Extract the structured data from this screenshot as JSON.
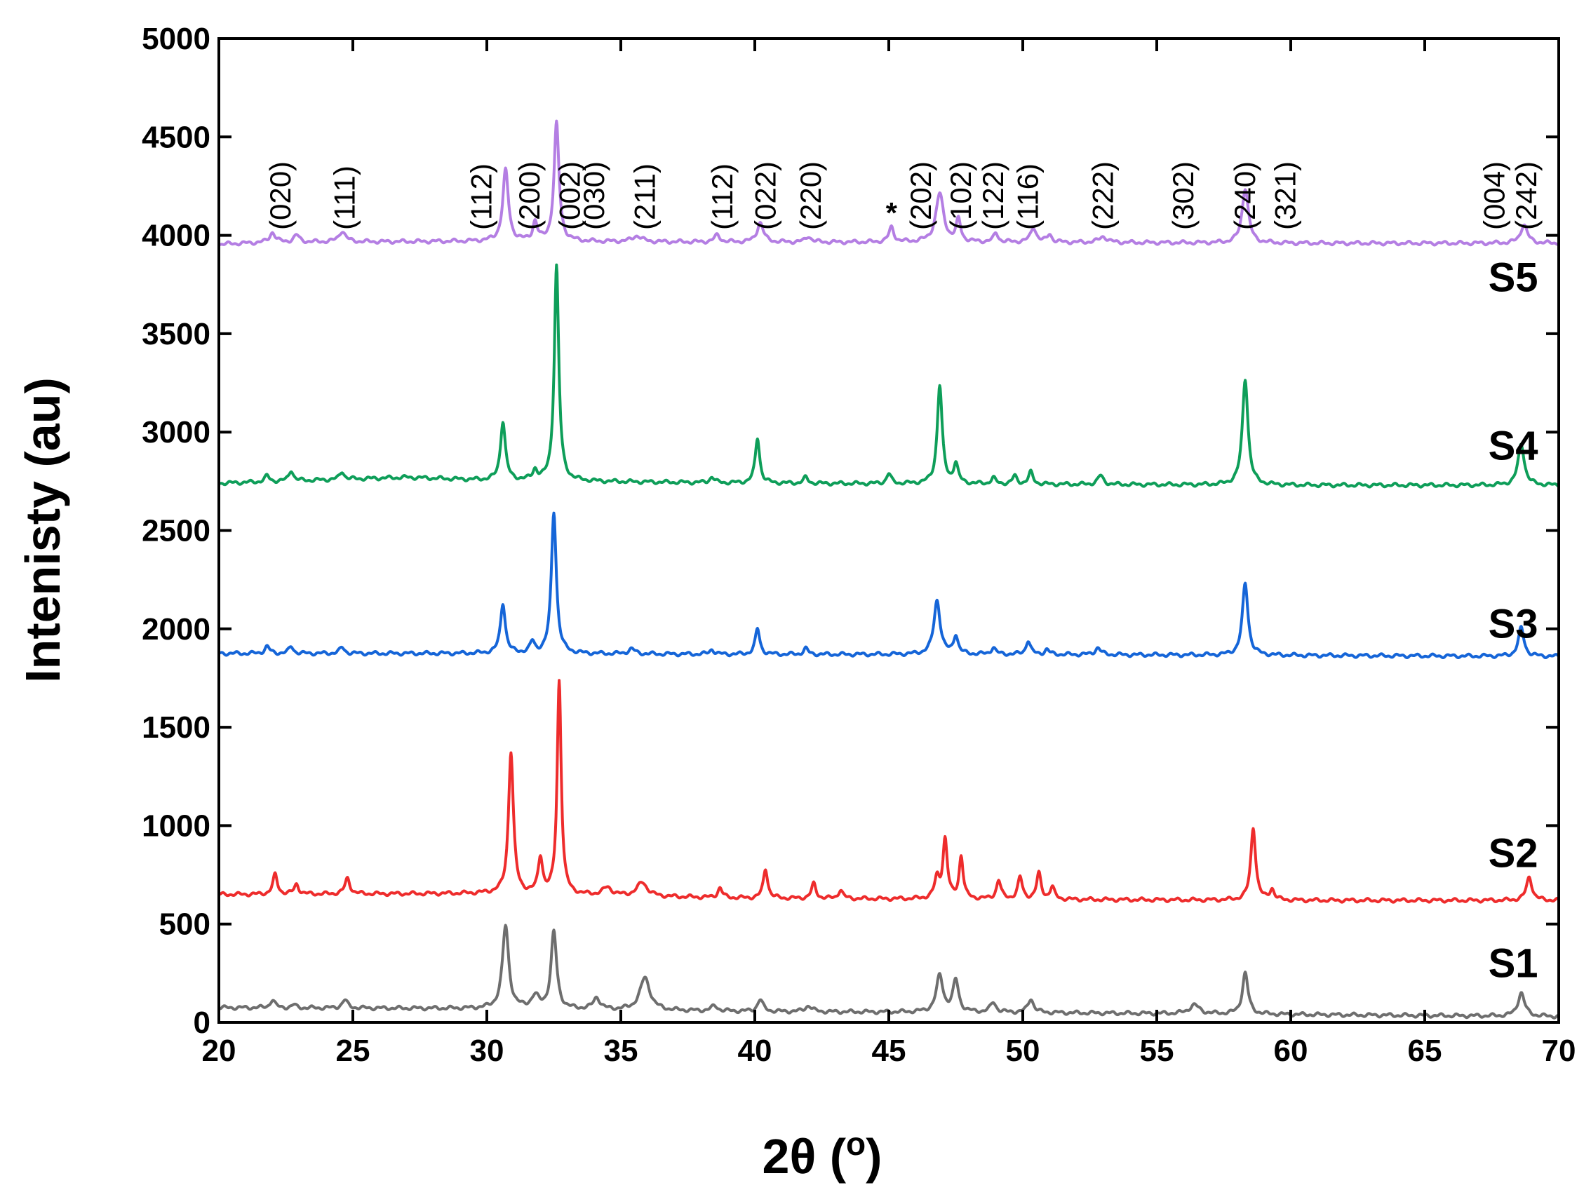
{
  "chart_data": {
    "type": "line",
    "title": "",
    "xlabel": "2θ (",
    "xlabel_sup": "o",
    "xlabel_end": ")",
    "ylabel": "Intenisty (au)",
    "xlim": [
      20,
      70
    ],
    "ylim": [
      0,
      5000
    ],
    "xticks": [
      20,
      25,
      30,
      35,
      40,
      45,
      50,
      55,
      60,
      65,
      70
    ],
    "yticks": [
      0,
      500,
      1000,
      1500,
      2000,
      2500,
      3000,
      3500,
      4000,
      4500,
      5000
    ],
    "grid": false,
    "series": [
      {
        "name": "S1",
        "color": "#6e6e6e",
        "baseline": [
          [
            20,
            75
          ],
          [
            30,
            70
          ],
          [
            40,
            55
          ],
          [
            50,
            50
          ],
          [
            60,
            40
          ],
          [
            70,
            30
          ]
        ],
        "peaks": [
          [
            22.0,
            40,
            0.22
          ],
          [
            22.8,
            15,
            0.2
          ],
          [
            24.7,
            40,
            0.25
          ],
          [
            30.7,
            420,
            0.28
          ],
          [
            31.8,
            60,
            0.35
          ],
          [
            32.5,
            390,
            0.25
          ],
          [
            34.1,
            60,
            0.3
          ],
          [
            35.9,
            165,
            0.45
          ],
          [
            38.5,
            25,
            0.3
          ],
          [
            40.2,
            60,
            0.25
          ],
          [
            42.0,
            30,
            0.3
          ],
          [
            46.9,
            185,
            0.3
          ],
          [
            47.5,
            160,
            0.25
          ],
          [
            48.9,
            50,
            0.25
          ],
          [
            50.3,
            70,
            0.25
          ],
          [
            56.4,
            45,
            0.45
          ],
          [
            58.3,
            210,
            0.25
          ],
          [
            68.6,
            120,
            0.3
          ]
        ]
      },
      {
        "name": "S2",
        "color": "#ee2c2c",
        "baseline": [
          [
            20,
            650
          ],
          [
            30,
            655
          ],
          [
            40,
            630
          ],
          [
            50,
            625
          ],
          [
            60,
            620
          ],
          [
            70,
            620
          ]
        ],
        "peaks": [
          [
            22.1,
            100,
            0.2
          ],
          [
            22.9,
            50,
            0.2
          ],
          [
            24.8,
            80,
            0.22
          ],
          [
            30.9,
            720,
            0.22
          ],
          [
            32.0,
            180,
            0.2
          ],
          [
            32.7,
            1085,
            0.18
          ],
          [
            34.5,
            40,
            0.4
          ],
          [
            35.8,
            70,
            0.45
          ],
          [
            38.7,
            50,
            0.2
          ],
          [
            40.4,
            150,
            0.2
          ],
          [
            42.2,
            75,
            0.2
          ],
          [
            43.2,
            45,
            0.2
          ],
          [
            46.8,
            100,
            0.22
          ],
          [
            47.1,
            300,
            0.2
          ],
          [
            47.7,
            215,
            0.18
          ],
          [
            49.1,
            95,
            0.2
          ],
          [
            49.9,
            110,
            0.2
          ],
          [
            50.6,
            130,
            0.2
          ],
          [
            51.1,
            60,
            0.2
          ],
          [
            58.6,
            370,
            0.22
          ],
          [
            59.3,
            55,
            0.2
          ],
          [
            68.9,
            120,
            0.25
          ]
        ]
      },
      {
        "name": "S3",
        "color": "#1565d8",
        "baseline": [
          [
            20,
            1875
          ],
          [
            30,
            1875
          ],
          [
            40,
            1870
          ],
          [
            50,
            1870
          ],
          [
            60,
            1865
          ],
          [
            70,
            1860
          ]
        ],
        "peaks": [
          [
            21.8,
            35,
            0.22
          ],
          [
            22.7,
            35,
            0.2
          ],
          [
            24.6,
            30,
            0.22
          ],
          [
            30.6,
            255,
            0.22
          ],
          [
            31.7,
            55,
            0.2
          ],
          [
            32.5,
            720,
            0.22
          ],
          [
            35.4,
            25,
            0.3
          ],
          [
            38.4,
            25,
            0.2
          ],
          [
            40.1,
            130,
            0.2
          ],
          [
            41.9,
            30,
            0.2
          ],
          [
            46.8,
            275,
            0.28
          ],
          [
            47.5,
            95,
            0.2
          ],
          [
            48.9,
            35,
            0.2
          ],
          [
            50.2,
            70,
            0.2
          ],
          [
            50.9,
            25,
            0.2
          ],
          [
            52.8,
            35,
            0.25
          ],
          [
            58.3,
            365,
            0.25
          ],
          [
            68.6,
            145,
            0.25
          ]
        ]
      },
      {
        "name": "S4",
        "color": "#0e9e59",
        "baseline": [
          [
            20,
            2740
          ],
          [
            27,
            2770
          ],
          [
            30,
            2755
          ],
          [
            40,
            2740
          ],
          [
            50,
            2735
          ],
          [
            60,
            2730
          ],
          [
            70,
            2730
          ]
        ],
        "peaks": [
          [
            21.8,
            30,
            0.2
          ],
          [
            22.7,
            55,
            0.2
          ],
          [
            24.6,
            40,
            0.2
          ],
          [
            30.6,
            300,
            0.22
          ],
          [
            31.8,
            50,
            0.2
          ],
          [
            32.6,
            1095,
            0.2
          ],
          [
            38.4,
            30,
            0.2
          ],
          [
            40.1,
            230,
            0.2
          ],
          [
            41.9,
            30,
            0.2
          ],
          [
            45.0,
            50,
            0.2
          ],
          [
            46.9,
            500,
            0.22
          ],
          [
            47.5,
            100,
            0.2
          ],
          [
            48.9,
            30,
            0.2
          ],
          [
            49.7,
            40,
            0.2
          ],
          [
            50.3,
            60,
            0.2
          ],
          [
            52.9,
            45,
            0.25
          ],
          [
            58.3,
            540,
            0.25
          ],
          [
            68.6,
            210,
            0.28
          ]
        ]
      },
      {
        "name": "S5",
        "color": "#b47ee3",
        "baseline": [
          [
            20,
            3955
          ],
          [
            22,
            3965
          ],
          [
            30,
            3970
          ],
          [
            40,
            3965
          ],
          [
            50,
            3965
          ],
          [
            60,
            3960
          ],
          [
            70,
            3960
          ]
        ],
        "peaks": [
          [
            22.0,
            50,
            0.25
          ],
          [
            22.9,
            35,
            0.25
          ],
          [
            24.6,
            55,
            0.3
          ],
          [
            30.7,
            360,
            0.25
          ],
          [
            31.8,
            95,
            0.2
          ],
          [
            32.6,
            600,
            0.22
          ],
          [
            35.6,
            30,
            0.4
          ],
          [
            38.6,
            35,
            0.25
          ],
          [
            40.2,
            100,
            0.28
          ],
          [
            42.0,
            30,
            0.25
          ],
          [
            45.1,
            75,
            0.22
          ],
          [
            46.9,
            245,
            0.35
          ],
          [
            47.6,
            110,
            0.2
          ],
          [
            49.0,
            45,
            0.2
          ],
          [
            50.4,
            75,
            0.25
          ],
          [
            51.0,
            40,
            0.2
          ],
          [
            53.0,
            30,
            0.35
          ],
          [
            58.3,
            280,
            0.28
          ],
          [
            68.7,
            95,
            0.3
          ]
        ]
      }
    ],
    "series_labels": [
      {
        "text": "S1",
        "x": 68.3,
        "y": 230
      },
      {
        "text": "S2",
        "x": 68.3,
        "y": 790
      },
      {
        "text": "S3",
        "x": 68.3,
        "y": 1955
      },
      {
        "text": "S4",
        "x": 68.3,
        "y": 2860
      },
      {
        "text": "S5",
        "x": 68.3,
        "y": 3715
      }
    ],
    "annotations": [
      {
        "text": "(020)",
        "x": 22.3
      },
      {
        "text": "(111)",
        "x": 24.7
      },
      {
        "text": "(112)",
        "x": 29.8
      },
      {
        "text": "(200)",
        "x": 31.6
      },
      {
        "text": "(002)",
        "x": 33.1
      },
      {
        "text": "(030)",
        "x": 34.0
      },
      {
        "text": "(211)",
        "x": 35.9
      },
      {
        "text": "(112)",
        "x": 38.8
      },
      {
        "text": "(022)",
        "x": 40.4
      },
      {
        "text": "(220)",
        "x": 42.1
      },
      {
        "text": "(202)",
        "x": 46.2
      },
      {
        "text": "(102)",
        "x": 47.7
      },
      {
        "text": "(122)",
        "x": 48.9
      },
      {
        "text": "(116)",
        "x": 50.2
      },
      {
        "text": "(222)",
        "x": 53.0
      },
      {
        "text": "(302)",
        "x": 56.0
      },
      {
        "text": "(240)",
        "x": 58.3
      },
      {
        "text": "(321)",
        "x": 59.8
      },
      {
        "text": "(004)",
        "x": 67.6
      },
      {
        "text": "(242)",
        "x": 68.8
      }
    ],
    "star_marker": {
      "text": "*",
      "x": 45.1
    }
  }
}
